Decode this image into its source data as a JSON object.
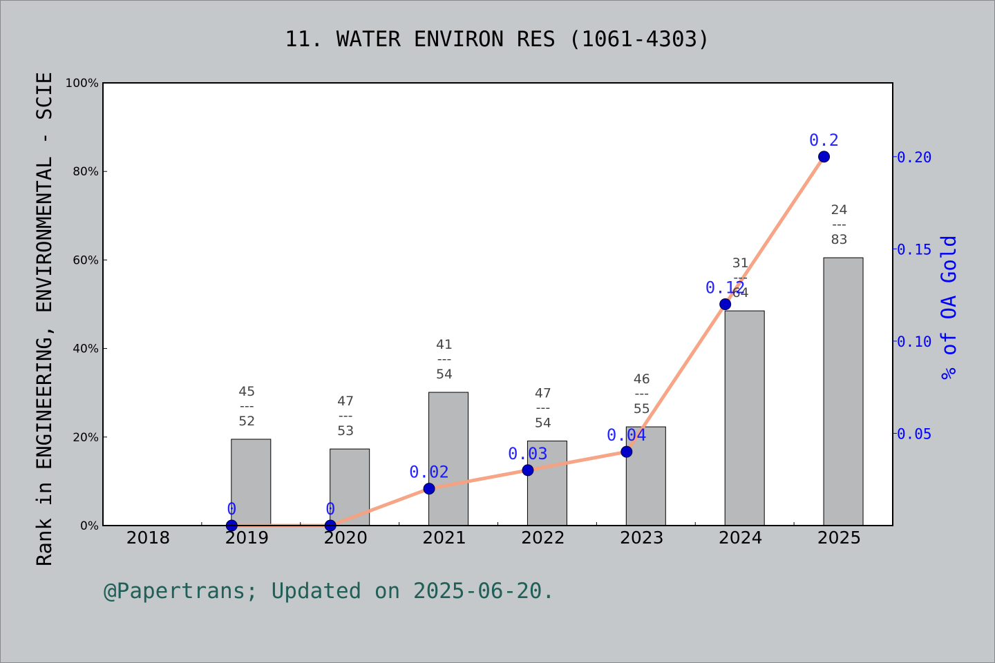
{
  "chart_data": {
    "type": "bar",
    "title": "11. WATER ENVIRON RES (1061-4303)",
    "ylabel": "Rank in ENGINEERING, ENVIRONMENTAL - SCIE",
    "y2label": "% of OA Gold",
    "footer": "@Papertrans; Updated on 2025-06-20.",
    "categories": [
      "2018",
      "2019",
      "2020",
      "2021",
      "2022",
      "2023",
      "2024",
      "2025"
    ],
    "ylim": [
      0,
      100
    ],
    "y_ticks": [
      "0%",
      "20%",
      "40%",
      "60%",
      "80%",
      "100%"
    ],
    "y2lim": [
      0,
      0.24
    ],
    "y2_ticks": [
      "0.05",
      "0.10",
      "0.15",
      "0.20"
    ],
    "grid": false,
    "series": [
      {
        "type": "bar",
        "values": [
          null,
          19.5,
          17.3,
          30.1,
          19.1,
          22.3,
          48.5,
          60.5
        ],
        "labels": [
          null,
          {
            "rank": "45",
            "total": "52"
          },
          {
            "rank": "47",
            "total": "53"
          },
          {
            "rank": "41",
            "total": "54"
          },
          {
            "rank": "47",
            "total": "54"
          },
          {
            "rank": "46",
            "total": "55"
          },
          {
            "rank": "31",
            "total": "64"
          },
          {
            "rank": "24",
            "total": "83"
          }
        ],
        "separator": "---",
        "color": "#b8b9ba"
      },
      {
        "type": "line",
        "axis": "right",
        "values": [
          null,
          0,
          0,
          0.02,
          0.03,
          0.04,
          0.12,
          0.2
        ],
        "labels": [
          null,
          "0",
          "0",
          "0.02",
          "0.03",
          "0.04",
          "0.12",
          "0.2"
        ],
        "line_color": "#f5a07f",
        "marker_color": "#0000c8"
      }
    ]
  }
}
